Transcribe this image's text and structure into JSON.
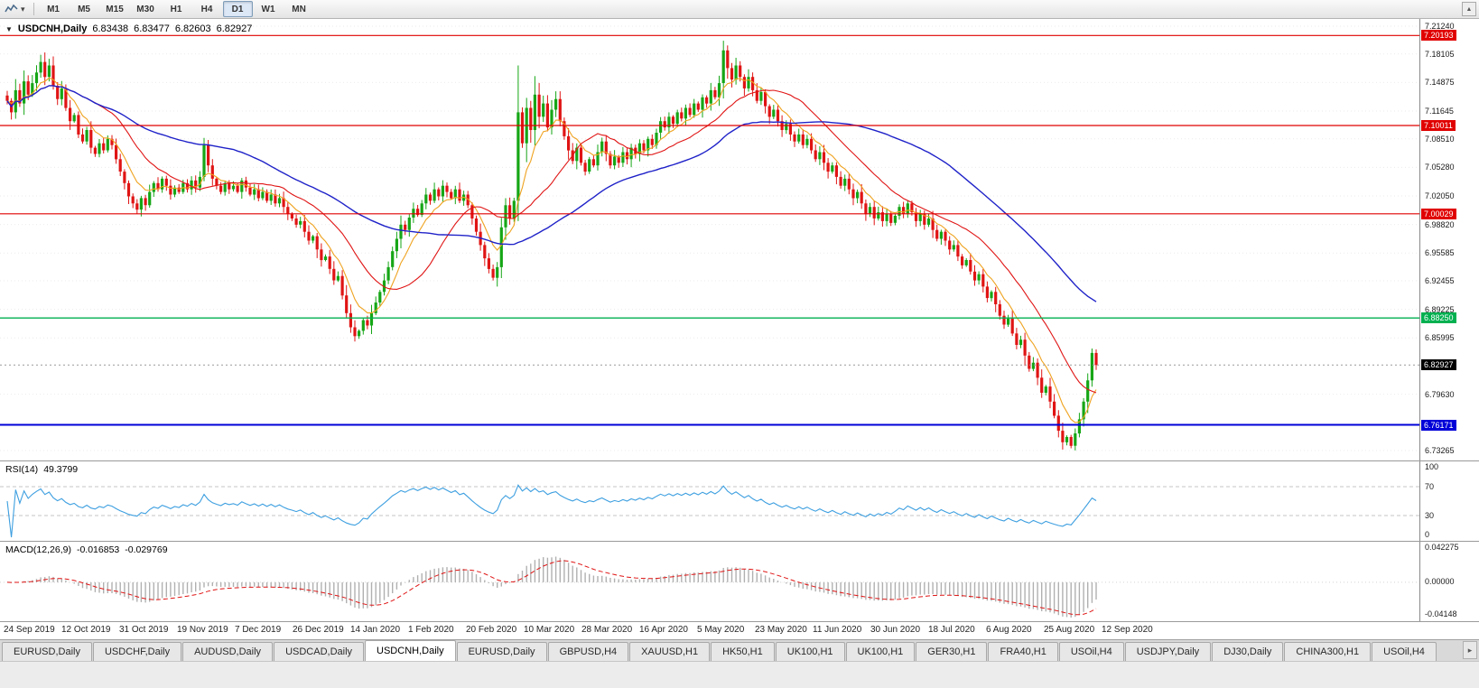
{
  "icons": {
    "collapse_triangle": "▼",
    "toolbar_caret": "▾",
    "scroll_up": "▲",
    "tab_scroll": "▸"
  },
  "toolbar": {
    "timeframes": [
      "M1",
      "M5",
      "M15",
      "M30",
      "H1",
      "H4",
      "D1",
      "W1",
      "MN"
    ],
    "active_timeframe": "D1"
  },
  "chart_title": {
    "symbol_period": "USDCNH,Daily",
    "open": "6.83438",
    "high": "6.83477",
    "low": "6.82603",
    "close": "6.82927"
  },
  "indicators": {
    "rsi": {
      "label": "RSI(14)",
      "value": "49.3799"
    },
    "macd": {
      "label": "MACD(12,26,9)",
      "value_main": "-0.016853",
      "value_signal": "-0.029769",
      "axis_max": "0.042275",
      "axis_zero": "0.00000",
      "axis_min": "-0.04148"
    }
  },
  "chart_data": {
    "type": "candlestick",
    "symbol": "USDCNH",
    "timeframe": "Daily",
    "title": "USDCNH,Daily 6.83438 6.83477 6.82603 6.82927",
    "x_dates": [
      "24 Sep 2019",
      "12 Oct 2019",
      "31 Oct 2019",
      "19 Nov 2019",
      "7 Dec 2019",
      "26 Dec 2019",
      "14 Jan 2020",
      "1 Feb 2020",
      "20 Feb 2020",
      "10 Mar 2020",
      "28 Mar 2020",
      "16 Apr 2020",
      "5 May 2020",
      "23 May 2020",
      "11 Jun 2020",
      "30 Jun 2020",
      "18 Jul 2020",
      "6 Aug 2020",
      "25 Aug 2020",
      "12 Sep 2020"
    ],
    "y_axis": {
      "top": 7.2124,
      "bottom": 6.73265,
      "ticks": [
        7.2124,
        7.18105,
        7.14875,
        7.11645,
        7.0851,
        7.0528,
        7.0205,
        6.9882,
        6.95585,
        6.92455,
        6.89225,
        6.85995,
        6.7963,
        6.73265
      ]
    },
    "levels": [
      {
        "price": 7.20193,
        "color": "#e00000",
        "thickness": 1.2
      },
      {
        "price": 7.10011,
        "color": "#e00000",
        "thickness": 1.2
      },
      {
        "price": 7.00029,
        "color": "#e00000",
        "thickness": 1.2
      },
      {
        "price": 6.8825,
        "color": "#00b050",
        "thickness": 1.4
      },
      {
        "price": 6.76171,
        "color": "#0000d8",
        "thickness": 2
      }
    ],
    "current_price": 6.82927,
    "closes": [
      7.128,
      7.115,
      7.14,
      7.125,
      7.15,
      7.135,
      7.148,
      7.16,
      7.172,
      7.155,
      7.168,
      7.145,
      7.13,
      7.142,
      7.12,
      7.105,
      7.112,
      7.09,
      7.082,
      7.095,
      7.075,
      7.068,
      7.08,
      7.072,
      7.085,
      7.078,
      7.062,
      7.048,
      7.035,
      7.02,
      7.012,
      7.005,
      7.018,
      7.01,
      7.025,
      7.035,
      7.028,
      7.04,
      7.032,
      7.022,
      7.03,
      7.025,
      7.035,
      7.028,
      7.038,
      7.03,
      7.042,
      7.078,
      7.055,
      7.04,
      7.032,
      7.025,
      7.035,
      7.028,
      7.032,
      7.025,
      7.038,
      7.03,
      7.022,
      7.028,
      7.018,
      7.025,
      7.015,
      7.022,
      7.012,
      7.018,
      7.008,
      7.0,
      6.995,
      6.988,
      6.992,
      6.98,
      6.97,
      6.975,
      6.96,
      6.948,
      6.952,
      6.938,
      6.925,
      6.93,
      6.908,
      6.888,
      6.872,
      6.862,
      6.868,
      6.88,
      6.874,
      6.888,
      6.9,
      6.912,
      6.925,
      6.94,
      6.958,
      6.972,
      6.988,
      6.982,
      6.996,
      7.006,
      6.999,
      7.012,
      7.022,
      7.015,
      7.028,
      7.02,
      7.032,
      7.025,
      7.018,
      7.028,
      7.015,
      7.022,
      7.01,
      6.995,
      6.98,
      6.965,
      6.95,
      6.938,
      6.928,
      6.94,
      6.985,
      7.01,
      6.995,
      7.015,
      7.115,
      7.08,
      7.12,
      7.095,
      7.135,
      7.11,
      7.125,
      7.098,
      7.118,
      7.13,
      7.105,
      7.088,
      7.072,
      7.06,
      7.075,
      7.058,
      7.048,
      7.062,
      7.055,
      7.07,
      7.082,
      7.068,
      7.055,
      7.065,
      7.058,
      7.07,
      7.062,
      7.075,
      7.068,
      7.08,
      7.072,
      7.085,
      7.078,
      7.092,
      7.105,
      7.098,
      7.11,
      7.102,
      7.115,
      7.108,
      7.12,
      7.112,
      7.125,
      7.118,
      7.132,
      7.125,
      7.14,
      7.132,
      7.148,
      7.185,
      7.165,
      7.152,
      7.168,
      7.155,
      7.142,
      7.155,
      7.14,
      7.128,
      7.138,
      7.122,
      7.11,
      7.118,
      7.105,
      7.095,
      7.102,
      7.09,
      7.082,
      7.09,
      7.078,
      7.085,
      7.072,
      7.062,
      7.07,
      7.058,
      7.048,
      7.055,
      7.042,
      7.032,
      7.04,
      7.028,
      7.018,
      7.025,
      7.012,
      7.0,
      7.008,
      6.995,
      7.002,
      6.992,
      7.0,
      6.99,
      6.998,
      7.008,
      7.0,
      7.012,
      7.002,
      6.992,
      7.0,
      6.988,
      6.995,
      6.982,
      6.972,
      6.98,
      6.97,
      6.96,
      6.965,
      6.952,
      6.942,
      6.948,
      6.935,
      6.925,
      6.932,
      6.918,
      6.905,
      6.912,
      6.898,
      6.885,
      6.875,
      6.882,
      6.865,
      6.852,
      6.858,
      6.84,
      6.825,
      6.832,
      6.815,
      6.798,
      6.805,
      6.788,
      6.772,
      6.755,
      6.742,
      6.748,
      6.738,
      6.752,
      6.768,
      6.788,
      6.812,
      6.843,
      6.8293
    ],
    "wick_overrides": {
      "8": {
        "h": 7.18
      },
      "47": {
        "h": 7.086
      },
      "83": {
        "l": 6.856
      },
      "117": {
        "l": 6.918
      },
      "122": {
        "h": 7.168,
        "l": 6.992
      },
      "126": {
        "h": 7.156
      },
      "171": {
        "h": 7.196
      },
      "252": {
        "l": 6.7338
      },
      "254": {
        "l": 6.7352
      },
      "259": {
        "h": 6.848
      }
    },
    "moving_averages": [
      {
        "name": "fast",
        "type": "ema",
        "period": 8
      },
      {
        "name": "mid",
        "type": "sma",
        "period": 20
      },
      {
        "name": "slow",
        "type": "sma",
        "period": 55
      }
    ],
    "rsi_scale": [
      100,
      70,
      30,
      0
    ],
    "rsi_levels_dashed": [
      70,
      30
    ],
    "rsi_period": 14,
    "macd_params": [
      12,
      26,
      9
    ],
    "macd_axis": {
      "max": 0.042275,
      "min": -0.04148
    },
    "colors": {
      "up": "#16a616",
      "down": "#e01414",
      "ma_fast": "#efa320",
      "ma_mid": "#e01414",
      "ma_slow": "#1f22c8",
      "rsi": "#3d9fe0",
      "macd_hist": "#b0b0b0",
      "macd_signal": "#e01414",
      "grid": "#ebebeb",
      "current_price_line": "#999999",
      "current_price_badge": "#000000"
    }
  },
  "tab_bar": {
    "tabs": [
      "EURUSD,Daily",
      "USDCHF,Daily",
      "AUDUSD,Daily",
      "USDCAD,Daily",
      "USDCNH,Daily",
      "EURUSD,Daily",
      "GBPUSD,H4",
      "XAUUSD,H1",
      "HK50,H1",
      "UK100,H1",
      "UK100,H1",
      "GER30,H1",
      "FRA40,H1",
      "USOil,H4",
      "USDJPY,Daily",
      "DJ30,Daily",
      "CHINA300,H1",
      "USOil,H4"
    ],
    "active_index": 4
  }
}
